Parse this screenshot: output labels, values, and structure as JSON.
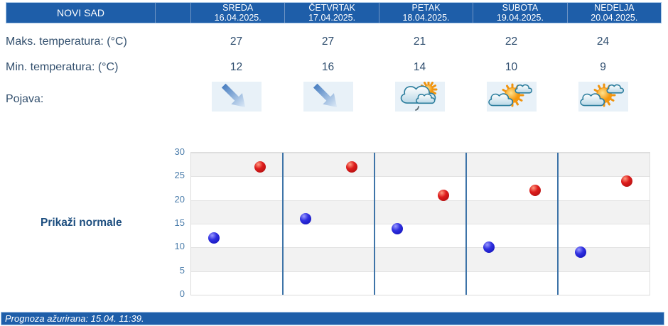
{
  "colors": {
    "header_bg": "#1e5ea9",
    "header_border": "#a9c7e6",
    "text_dark": "#33506e",
    "link_blue": "#1d4e7f",
    "axis_label_blue": "#4b7dab",
    "day_separator_blue": "#3e74a8",
    "band_gray": "#f2f2f2",
    "icon_bg": "#e8f1f8",
    "dot_min_blue": "#1414cc",
    "dot_max_red": "#cc1414"
  },
  "header": {
    "location": "NOVI SAD",
    "days": [
      {
        "name": "SREDA",
        "date": "16.04.2025."
      },
      {
        "name": "ČETVRTAK",
        "date": "17.04.2025."
      },
      {
        "name": "PETAK",
        "date": "18.04.2025."
      },
      {
        "name": "SUBOTA",
        "date": "19.04.2025."
      },
      {
        "name": "NEDELJA",
        "date": "20.04.2025."
      }
    ]
  },
  "rows": {
    "max_label": "Maks. temperatura: (°C)",
    "min_label": "Min. temperatura: (°C)",
    "pojava_label": "Pojava:",
    "max_values": [
      "27",
      "27",
      "21",
      "22",
      "24"
    ],
    "min_values": [
      "12",
      "16",
      "14",
      "10",
      "9"
    ],
    "icons": [
      "temp-drop-arrow-icon",
      "temp-drop-arrow-icon",
      "cloud-sun-light-rain-icon",
      "sun-with-clouds-icon",
      "sun-with-clouds-icon"
    ]
  },
  "normals_link_label": "Prikaži normale",
  "footer_text": "Prognoza ažurirana:  15.04. 11:39.",
  "chart_data": {
    "type": "scatter",
    "categories": [
      "SREDA",
      "ČETVRTAK",
      "PETAK",
      "SUBOTA",
      "NEDELJA"
    ],
    "series": [
      {
        "name": "Min. temperatura (°C)",
        "color": "#1414cc",
        "values": [
          12,
          16,
          14,
          10,
          9
        ]
      },
      {
        "name": "Maks. temperatura (°C)",
        "color": "#cc1414",
        "values": [
          27,
          27,
          21,
          22,
          24
        ]
      }
    ],
    "ylim": [
      0,
      30
    ],
    "yticks": [
      0,
      5,
      10,
      15,
      20,
      25,
      30
    ],
    "grid": "horizontal bands, alternating gray/white; vertical blue separators between days",
    "legend_position": "none"
  }
}
